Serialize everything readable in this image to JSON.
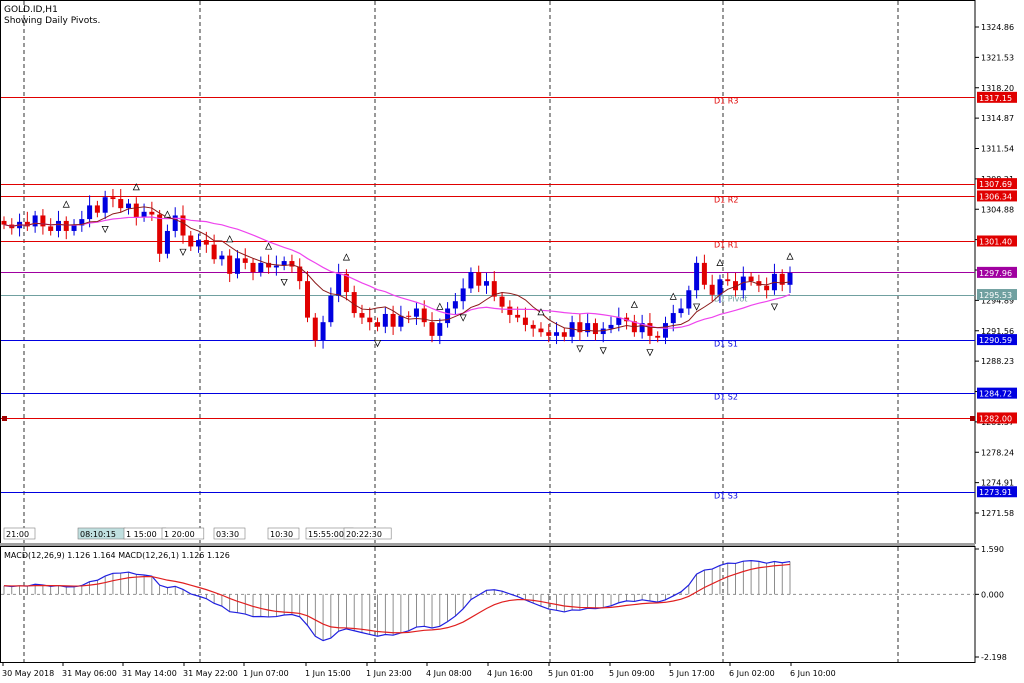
{
  "header": {
    "symbol": "GOLD.ID,H1",
    "subtitle": "Showing Daily Pivots."
  },
  "chart_data": {
    "type": "candlestick",
    "price_axis": {
      "min": 1271.58,
      "max": 1324.86,
      "ticks": [
        "1324.86",
        "1321.53",
        "1318.20",
        "1314.87",
        "1311.54",
        "1308.21",
        "1304.88",
        "1301.55",
        "1298.22",
        "1294.89",
        "1291.56",
        "1288.23",
        "1284.90",
        "1281.57",
        "1278.24",
        "1274.91",
        "1271.58"
      ]
    },
    "pivot_lines": [
      {
        "label": "D1  R3",
        "value": 1317.15,
        "color": "#e00000"
      },
      {
        "label": "",
        "value": 1307.69,
        "color": "#e00000"
      },
      {
        "label": "D1  R2",
        "value": 1306.34,
        "color": "#e00000"
      },
      {
        "label": "D1  R1",
        "value": 1301.4,
        "color": "#e00000"
      },
      {
        "label": "",
        "value": 1297.96,
        "color": "#a000a0"
      },
      {
        "label": "D1  Pivot",
        "value": 1295.53,
        "color": "#70a0a0"
      },
      {
        "label": "D1  S1",
        "value": 1290.59,
        "color": "#0000e0"
      },
      {
        "label": "D1  S2",
        "value": 1284.72,
        "color": "#0000e0"
      },
      {
        "label": "",
        "value": 1282.0,
        "color": "#e00000"
      },
      {
        "label": "D1  S3",
        "value": 1273.91,
        "color": "#0000e0"
      }
    ],
    "price_labels": [
      "1317.15",
      "1307.69",
      "1306.34",
      "1301.40",
      "1297.96",
      "1295.53",
      "1290.59",
      "1284.72",
      "1282.00",
      "1273.91"
    ],
    "session_labels": [
      "21:00",
      "08:10:15",
      "1 15:00",
      "1 20:00",
      "03:30",
      "10:30",
      "15:55:00",
      "20:22:30"
    ],
    "x_labels": [
      "30 May 2018",
      "31 May 06:00",
      "31 May 14:00",
      "31 May 22:00",
      "1 Jun 07:00",
      "1 Jun 15:00",
      "1 Jun 23:00",
      "4 Jun 08:00",
      "4 Jun 16:00",
      "5 Jun 01:00",
      "5 Jun 09:00",
      "5 Jun 17:00",
      "6 Jun 02:00",
      "6 Jun 10:00"
    ],
    "closes": [
      1303.2,
      1302.8,
      1303.5,
      1303.0,
      1304.2,
      1303.0,
      1302.5,
      1303.6,
      1302.5,
      1303.1,
      1303.8,
      1305.3,
      1304.5,
      1306.2,
      1306.0,
      1305.0,
      1305.5,
      1304.0,
      1304.6,
      1304.3,
      1300.0,
      1302.5,
      1304.2,
      1302.0,
      1300.8,
      1301.5,
      1301.0,
      1299.4,
      1299.8,
      1297.8,
      1299.5,
      1299.0,
      1298.0,
      1299.0,
      1298.5,
      1298.7,
      1299.2,
      1298.6,
      1297.0,
      1293.0,
      1290.5,
      1292.5,
      1295.4,
      1297.8,
      1295.8,
      1293.5,
      1293.0,
      1292.5,
      1292.0,
      1293.4,
      1292.0,
      1293.2,
      1293.1,
      1294.0,
      1292.5,
      1291.0,
      1292.4,
      1294.0,
      1294.8,
      1296.2,
      1298.0,
      1296.5,
      1297.0,
      1295.3,
      1294.2,
      1293.3,
      1293.0,
      1292.2,
      1291.8,
      1291.4,
      1291.0,
      1291.4,
      1290.9,
      1292.5,
      1291.4,
      1292.4,
      1291.2,
      1291.8,
      1292.2,
      1293.0,
      1292.6,
      1291.4,
      1292.4,
      1291.0,
      1290.8,
      1292.4,
      1293.5,
      1294.0,
      1296.0,
      1299.0,
      1296.6,
      1295.5,
      1297.2,
      1297.0,
      1296.0,
      1297.5,
      1297.0,
      1296.5,
      1296.0,
      1297.8,
      1296.6,
      1297.9
    ],
    "macd_axis": {
      "min": -2.198,
      "max": 1.59,
      "ticks": [
        "1.590",
        "0.000",
        "-2.198"
      ]
    },
    "indicator_label": "MACD(12,26,9) 1.126 1.164 MACD(12,26,1) 1.126 1.126"
  }
}
